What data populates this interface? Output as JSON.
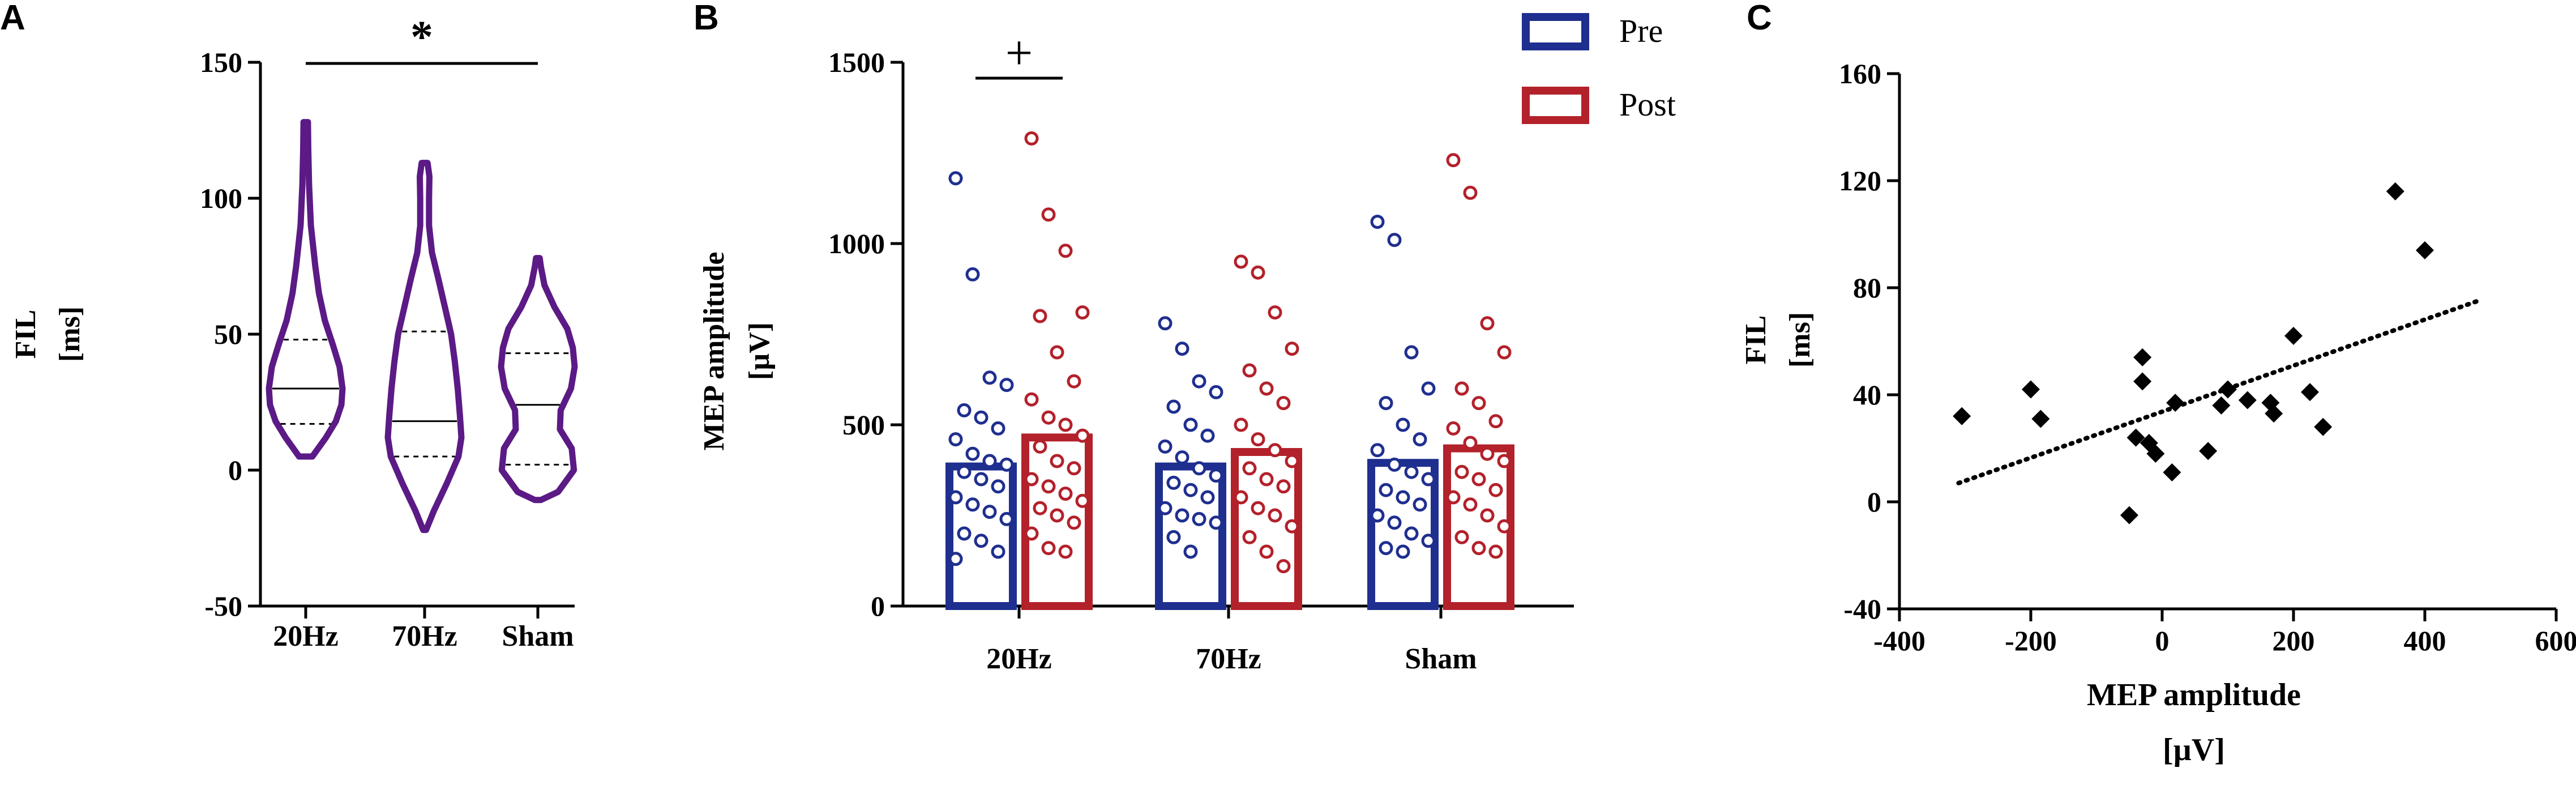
{
  "chart_data": [
    {
      "panel": "A",
      "type": "violin",
      "ylabel": "FIL",
      "yunit": "[ms]",
      "ylim": [
        -50,
        150
      ],
      "yticks": [
        -50,
        0,
        50,
        100,
        150
      ],
      "categories": [
        "20Hz",
        "70Hz",
        "Sham"
      ],
      "color": "#5b1a85",
      "violins": [
        {
          "name": "20Hz",
          "min": 5,
          "max": 128,
          "q1": 17,
          "median": 30,
          "q3": 48,
          "profile": [
            [
              5,
              0.18
            ],
            [
              12,
              0.55
            ],
            [
              18,
              0.82
            ],
            [
              24,
              0.97
            ],
            [
              30,
              1.0
            ],
            [
              38,
              0.92
            ],
            [
              46,
              0.74
            ],
            [
              55,
              0.52
            ],
            [
              65,
              0.36
            ],
            [
              75,
              0.26
            ],
            [
              90,
              0.14
            ],
            [
              105,
              0.09
            ],
            [
              118,
              0.07
            ],
            [
              128,
              0.06
            ]
          ]
        },
        {
          "name": "70Hz",
          "min": -22,
          "max": 113,
          "q1": 5,
          "median": 18,
          "q3": 51,
          "profile": [
            [
              -22,
              0.04
            ],
            [
              -15,
              0.25
            ],
            [
              -5,
              0.6
            ],
            [
              5,
              0.92
            ],
            [
              12,
              1.0
            ],
            [
              20,
              0.96
            ],
            [
              30,
              0.9
            ],
            [
              40,
              0.82
            ],
            [
              50,
              0.72
            ],
            [
              60,
              0.55
            ],
            [
              70,
              0.38
            ],
            [
              80,
              0.2
            ],
            [
              90,
              0.12
            ],
            [
              100,
              0.12
            ],
            [
              108,
              0.13
            ],
            [
              113,
              0.08
            ]
          ]
        },
        {
          "name": "Sham",
          "min": -11,
          "max": 78,
          "q1": 2,
          "median": 24,
          "q3": 43,
          "profile": [
            [
              -11,
              0.08
            ],
            [
              -8,
              0.55
            ],
            [
              0,
              0.98
            ],
            [
              8,
              0.92
            ],
            [
              15,
              0.6
            ],
            [
              22,
              0.62
            ],
            [
              30,
              0.9
            ],
            [
              38,
              1.0
            ],
            [
              45,
              0.95
            ],
            [
              52,
              0.8
            ],
            [
              60,
              0.45
            ],
            [
              68,
              0.18
            ],
            [
              75,
              0.08
            ],
            [
              78,
              0.05
            ]
          ]
        }
      ],
      "significance": {
        "from": "20Hz",
        "to": "Sham",
        "marker": "*"
      }
    },
    {
      "panel": "B",
      "type": "bar",
      "ylabel": "MEP amplitude",
      "yunit": "[µV]",
      "ylim": [
        0,
        1500
      ],
      "yticks": [
        0,
        500,
        1000,
        1500
      ],
      "categories": [
        "20Hz",
        "70Hz",
        "Sham"
      ],
      "legend_position": "top-right",
      "series": [
        {
          "name": "Pre",
          "color": "#1f2f8f",
          "values": [
            385,
            385,
            395
          ],
          "points": [
            [
              1180,
              915,
              630,
              610,
              540,
              520,
              490,
              460,
              420,
              400,
              390,
              370,
              350,
              330,
              300,
              280,
              260,
              240,
              200,
              180,
              150,
              130
            ],
            [
              780,
              710,
              620,
              590,
              550,
              500,
              470,
              440,
              410,
              380,
              360,
              340,
              320,
              300,
              270,
              250,
              240,
              230,
              190,
              150
            ],
            [
              1060,
              1010,
              700,
              600,
              560,
              500,
              460,
              430,
              390,
              370,
              350,
              320,
              300,
              280,
              250,
              230,
              200,
              180,
              160,
              150
            ]
          ]
        },
        {
          "name": "Post",
          "color": "#b3212b",
          "values": [
            465,
            425,
            435
          ],
          "points": [
            [
              1290,
              1080,
              980,
              810,
              800,
              700,
              620,
              570,
              520,
              500,
              470,
              440,
              400,
              380,
              350,
              330,
              310,
              290,
              270,
              250,
              230,
              200,
              160,
              150
            ],
            [
              950,
              920,
              810,
              710,
              650,
              600,
              560,
              500,
              460,
              430,
              400,
              380,
              350,
              330,
              300,
              270,
              250,
              220,
              190,
              150,
              110
            ],
            [
              1230,
              1140,
              780,
              700,
              600,
              560,
              510,
              490,
              450,
              420,
              400,
              370,
              350,
              320,
              300,
              280,
              250,
              220,
              190,
              160,
              150
            ]
          ]
        }
      ],
      "significance": {
        "category": "20Hz",
        "marker": "+"
      }
    },
    {
      "panel": "C",
      "type": "scatter",
      "xlabel": "MEP amplitude",
      "xunit": "[µV]",
      "ylabel": "FIL",
      "yunit": "[ms]",
      "xlim": [
        -400,
        600
      ],
      "ylim": [
        -40,
        160
      ],
      "xticks": [
        -400,
        -200,
        0,
        200,
        400,
        600
      ],
      "yticks": [
        -40,
        0,
        40,
        80,
        120,
        160
      ],
      "points": [
        [
          -305,
          32
        ],
        [
          -200,
          42
        ],
        [
          -185,
          31
        ],
        [
          -50,
          -5
        ],
        [
          -40,
          24
        ],
        [
          -30,
          54
        ],
        [
          -30,
          45
        ],
        [
          -20,
          22
        ],
        [
          -10,
          18
        ],
        [
          15,
          11
        ],
        [
          20,
          37
        ],
        [
          70,
          19
        ],
        [
          90,
          36
        ],
        [
          100,
          42
        ],
        [
          130,
          38
        ],
        [
          165,
          37
        ],
        [
          170,
          33
        ],
        [
          200,
          62
        ],
        [
          225,
          41
        ],
        [
          245,
          28
        ],
        [
          355,
          116
        ],
        [
          400,
          94
        ]
      ],
      "trendline": {
        "x": [
          -310,
          480
        ],
        "y": [
          7,
          75
        ],
        "style": "dotted"
      }
    }
  ],
  "panel_labels": {
    "a": "A",
    "b": "B",
    "c": "C"
  }
}
